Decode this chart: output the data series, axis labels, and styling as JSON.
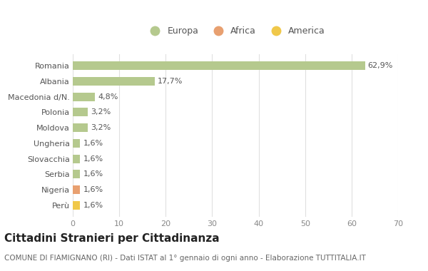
{
  "categories": [
    "Romania",
    "Albania",
    "Macedonia d/N.",
    "Polonia",
    "Moldova",
    "Ungheria",
    "Slovacchia",
    "Serbia",
    "Nigeria",
    "Perù"
  ],
  "values": [
    62.9,
    17.7,
    4.8,
    3.2,
    3.2,
    1.6,
    1.6,
    1.6,
    1.6,
    1.6
  ],
  "colors": [
    "#b5c98e",
    "#b5c98e",
    "#b5c98e",
    "#b5c98e",
    "#b5c98e",
    "#b5c98e",
    "#b5c98e",
    "#b5c98e",
    "#e8a070",
    "#f0c84a"
  ],
  "labels": [
    "62,9%",
    "17,7%",
    "4,8%",
    "3,2%",
    "3,2%",
    "1,6%",
    "1,6%",
    "1,6%",
    "1,6%",
    "1,6%"
  ],
  "legend": [
    {
      "label": "Europa",
      "color": "#b5c98e"
    },
    {
      "label": "Africa",
      "color": "#e8a070"
    },
    {
      "label": "America",
      "color": "#f0c84a"
    }
  ],
  "xlim": [
    0,
    70
  ],
  "xticks": [
    0,
    10,
    20,
    30,
    40,
    50,
    60,
    70
  ],
  "background_color": "#ffffff",
  "plot_bg_color": "#ffffff",
  "grid_color": "#e0e0e0",
  "title": "Cittadini Stranieri per Cittadinanza",
  "subtitle": "COMUNE DI FIAMIGNANO (RI) - Dati ISTAT al 1° gennaio di ogni anno - Elaborazione TUTTITALIA.IT",
  "title_fontsize": 11,
  "subtitle_fontsize": 7.5,
  "bar_height": 0.55,
  "label_fontsize": 8,
  "tick_fontsize": 8
}
